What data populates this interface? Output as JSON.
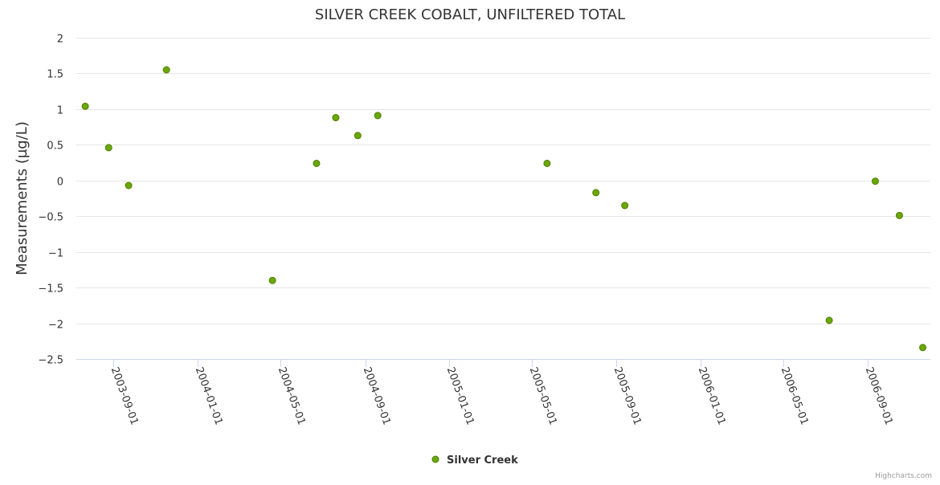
{
  "chart_data": {
    "type": "scatter",
    "title": "SILVER CREEK COBALT, UNFILTERED TOTAL",
    "xlabel": "",
    "ylabel": "Measurements (µg/L)",
    "ylim": [
      -2.5,
      2
    ],
    "yticks": [
      2,
      1.5,
      1,
      0.5,
      0,
      -0.5,
      -1,
      -1.5,
      -2,
      -2.5
    ],
    "ytick_labels": [
      "2",
      "1.5",
      "1",
      "0.5",
      "0",
      "−0.5",
      "−1",
      "−1.5",
      "−2",
      "−2.5"
    ],
    "xlim": [
      "2003-07-09",
      "2006-12-01"
    ],
    "xticks": [
      "2003-09-01",
      "2004-01-01",
      "2004-05-01",
      "2004-09-01",
      "2005-01-01",
      "2005-05-01",
      "2005-09-01",
      "2006-01-01",
      "2006-05-01",
      "2006-09-01"
    ],
    "grid": true,
    "legend_position": "bottom-center",
    "series": [
      {
        "name": "Silver Creek",
        "color": "#6aa800",
        "points": [
          {
            "x": "2003-07-22",
            "y": 1.04
          },
          {
            "x": "2003-08-25",
            "y": 0.46
          },
          {
            "x": "2003-09-23",
            "y": -0.07
          },
          {
            "x": "2003-11-17",
            "y": 1.55
          },
          {
            "x": "2004-04-19",
            "y": -1.4
          },
          {
            "x": "2004-06-22",
            "y": 0.24
          },
          {
            "x": "2004-07-20",
            "y": 0.88
          },
          {
            "x": "2004-08-21",
            "y": 0.63
          },
          {
            "x": "2004-09-19",
            "y": 0.91
          },
          {
            "x": "2005-05-23",
            "y": 0.24
          },
          {
            "x": "2005-08-02",
            "y": -0.17
          },
          {
            "x": "2005-09-13",
            "y": -0.35
          },
          {
            "x": "2006-07-07",
            "y": -1.96
          },
          {
            "x": "2006-09-12",
            "y": -0.01
          },
          {
            "x": "2006-10-17",
            "y": -0.49
          },
          {
            "x": "2006-11-20",
            "y": -2.34
          }
        ]
      }
    ]
  },
  "credits": "Highcharts.com"
}
